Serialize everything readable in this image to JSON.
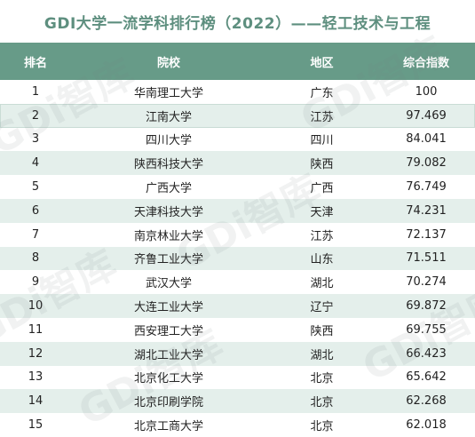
{
  "title": "GDI大学一流学科排行榜（2022）——轻工技术与工程",
  "columns": {
    "rank": "排名",
    "school": "院校",
    "region": "地区",
    "score": "综合指数"
  },
  "rows": [
    {
      "rank": "1",
      "school": "华南理工大学",
      "region": "广东",
      "score": "100"
    },
    {
      "rank": "2",
      "school": "江南大学",
      "region": "江苏",
      "score": "97.469"
    },
    {
      "rank": "3",
      "school": "四川大学",
      "region": "四川",
      "score": "84.041"
    },
    {
      "rank": "4",
      "school": "陕西科技大学",
      "region": "陕西",
      "score": "79.082"
    },
    {
      "rank": "5",
      "school": "广西大学",
      "region": "广西",
      "score": "76.749"
    },
    {
      "rank": "6",
      "school": "天津科技大学",
      "region": "天津",
      "score": "74.231"
    },
    {
      "rank": "7",
      "school": "南京林业大学",
      "region": "江苏",
      "score": "72.137"
    },
    {
      "rank": "8",
      "school": "齐鲁工业大学",
      "region": "山东",
      "score": "71.511"
    },
    {
      "rank": "9",
      "school": "武汉大学",
      "region": "湖北",
      "score": "70.274"
    },
    {
      "rank": "10",
      "school": "大连工业大学",
      "region": "辽宁",
      "score": "69.872"
    },
    {
      "rank": "11",
      "school": "西安理工大学",
      "region": "陕西",
      "score": "69.755"
    },
    {
      "rank": "12",
      "school": "湖北工业大学",
      "region": "湖北",
      "score": "66.423"
    },
    {
      "rank": "13",
      "school": "北京化工大学",
      "region": "北京",
      "score": "65.642"
    },
    {
      "rank": "14",
      "school": "北京印刷学院",
      "region": "北京",
      "score": "62.268"
    },
    {
      "rank": "15",
      "school": "北京工商大学",
      "region": "北京",
      "score": "62.018"
    }
  ],
  "watermark": "GDi智库",
  "colors": {
    "title": "#5e8f7f",
    "header_bg": "#679b88",
    "alt_row": "#e4efeb"
  }
}
